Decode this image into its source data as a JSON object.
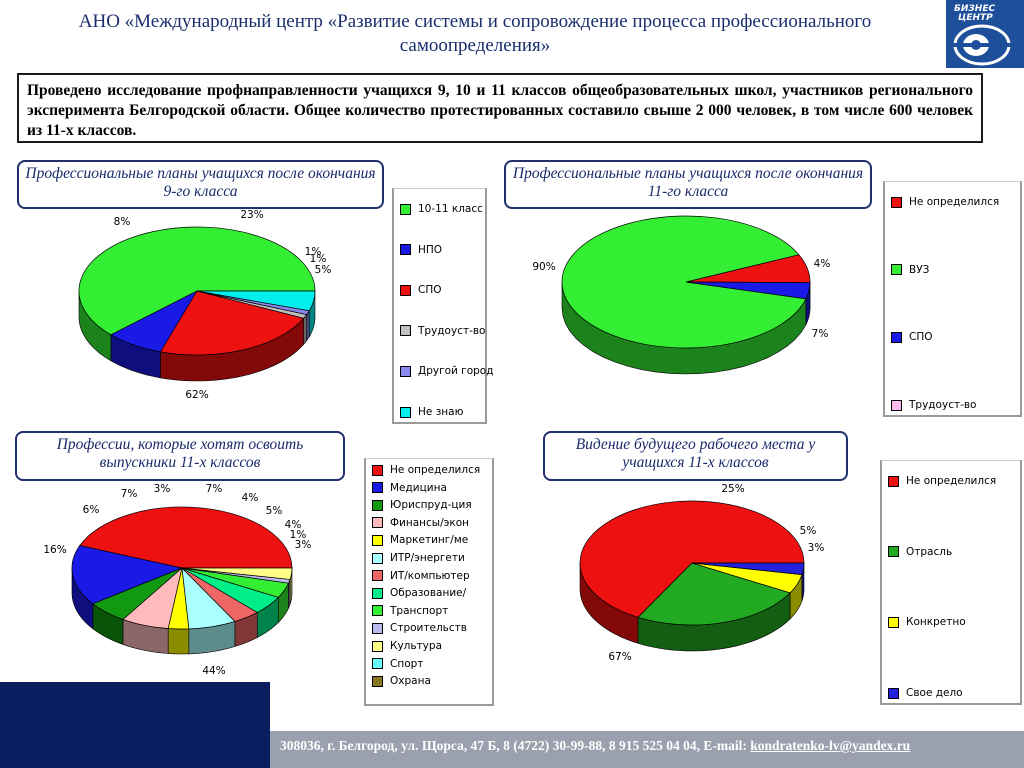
{
  "header": {
    "title": "АНО «Международный центр «Развитие системы и сопровождение процесса профессионального самоопределения»",
    "logo_text": [
      "БИЗНЕС",
      "ЦЕНТР"
    ]
  },
  "intro": "Проведено исследование профнаправленности учащихся 9, 10 и 11 классов общеобразовательных школ, участников регионального эксперимента Белгородской области. Общее количество протестированных составило свыше 2 000 человек, в том числе 600 человек из 11-х классов.",
  "footer": {
    "address": "308036, г. Белгород, ул. Щорса, 47 Б, 8 (4722) 30-99-88, 8 915 525 04 04, E-mail: ",
    "email": "kondratenko-lv@yandex.ru"
  },
  "chart_data": [
    {
      "type": "pie",
      "title": "Профессиональные планы учащихся после окончания 9-го класса",
      "categories": [
        "10-11 класс",
        "НПО",
        "СПО",
        "Трудоуст-во",
        "Другой город",
        "Не знаю"
      ],
      "values": [
        62,
        8,
        23,
        1,
        1,
        5
      ],
      "labels": [
        "62%",
        "8%",
        "23%",
        "1%",
        "1%",
        "5%"
      ],
      "colors": [
        "#33ee33",
        "#1a1ae6",
        "#ee1111",
        "#c0c0c0",
        "#8888ee",
        "#00eeee"
      ],
      "legend": "right"
    },
    {
      "type": "pie",
      "title": "Профессиональные планы учащихся после окончания 11-го класса",
      "categories": [
        "Не определился",
        "ВУЗ",
        "СПО",
        "Трудоуст-во"
      ],
      "values": [
        7,
        90,
        4,
        0
      ],
      "labels": [
        "7%",
        "90%",
        "4%",
        ""
      ],
      "colors": [
        "#ee1111",
        "#33ee33",
        "#1a1ae6",
        "#ffbbee"
      ],
      "legend": "right"
    },
    {
      "type": "pie",
      "title": "Профессии, которые хотят освоить выпускники 11-х классов",
      "categories": [
        "Не определился",
        "Медицина",
        "Юриспруд-ция",
        "Финансы/экон",
        "Маркетинг/ме",
        "ИТР/энергети",
        "ИТ/компьютер",
        "Образование/",
        "Транспорт",
        "Строительств",
        "Культура",
        "Спорт",
        "Охрана"
      ],
      "values": [
        44,
        16,
        6,
        7,
        3,
        7,
        4,
        5,
        4,
        1,
        3,
        0,
        0
      ],
      "labels": [
        "44%",
        "16%",
        "6%",
        "7%",
        "3%",
        "7%",
        "4%",
        "5%",
        "4%",
        "1%",
        "3%",
        "",
        ""
      ],
      "colors": [
        "#ee1111",
        "#1a1ae6",
        "#119911",
        "#ffbbbb",
        "#ffff00",
        "#aaffff",
        "#ee6666",
        "#00ee88",
        "#33ee33",
        "#bbbbee",
        "#ffff88",
        "#66ffff",
        "#887722"
      ],
      "legend": "right"
    },
    {
      "type": "pie",
      "title": "Видение будущего рабочего места у учащихся 11-х классов",
      "categories": [
        "Не определился",
        "Отрасль",
        "Конкретно",
        "Свое дело"
      ],
      "values": [
        67,
        25,
        5,
        3
      ],
      "labels": [
        "67%",
        "25%",
        "5%",
        "3%"
      ],
      "colors": [
        "#ee1111",
        "#22aa22",
        "#ffff00",
        "#2222dd"
      ],
      "legend": "right"
    }
  ]
}
